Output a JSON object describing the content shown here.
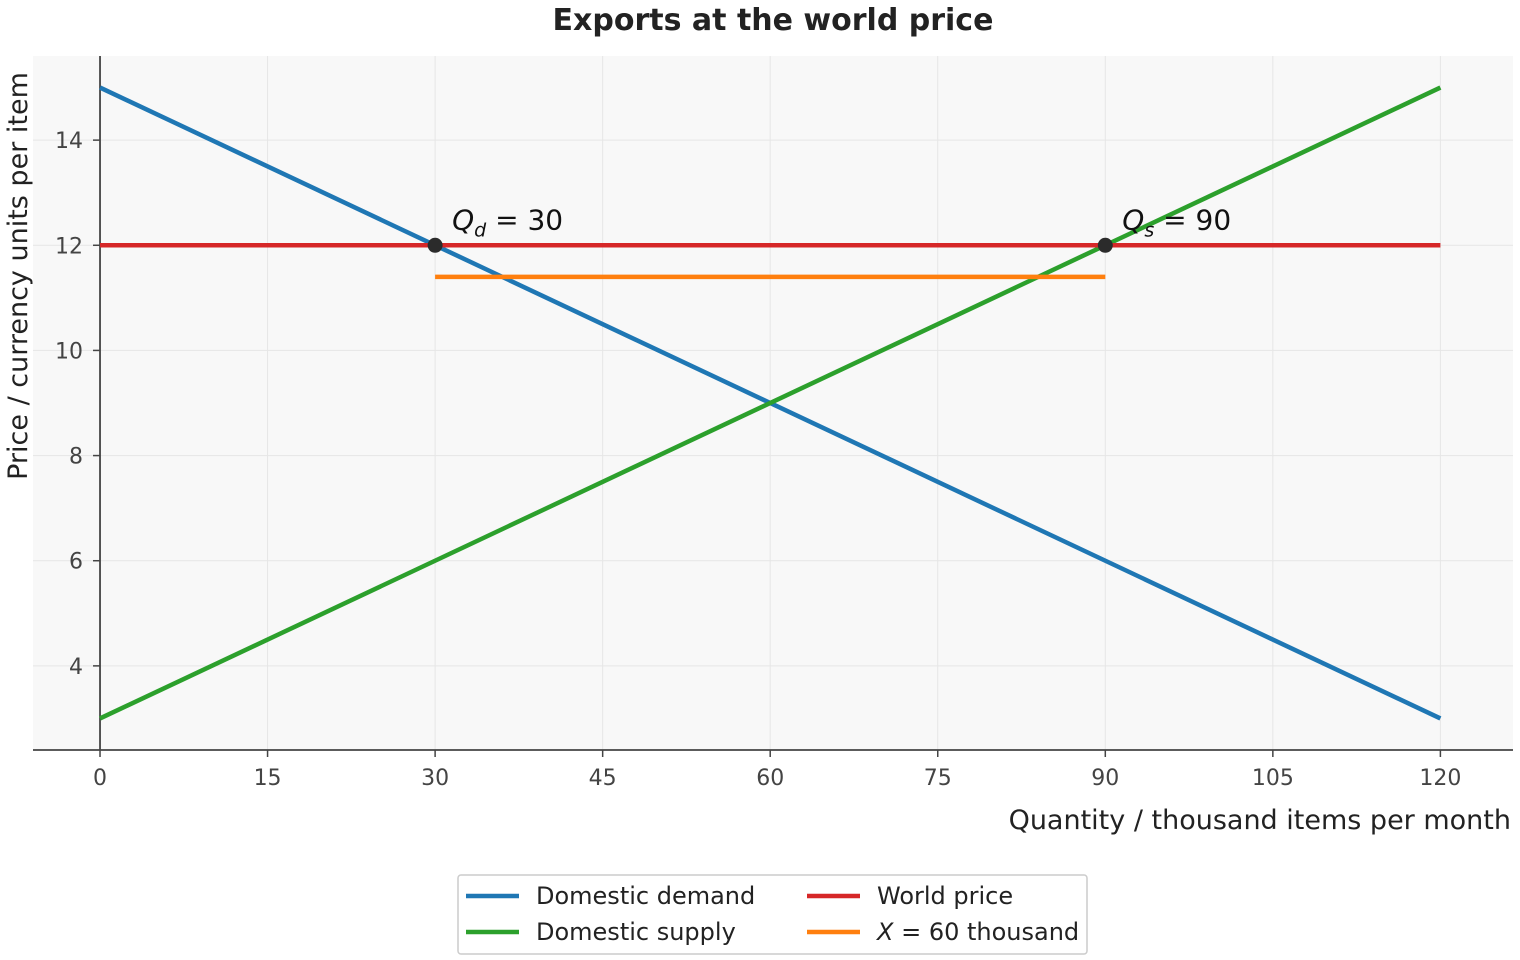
{
  "chart_data": {
    "type": "line",
    "title": "Exports at the world price",
    "xlabel": "Quantity / thousand items per month",
    "ylabel": "Price / currency units per item",
    "xlim": [
      -6,
      126.5
    ],
    "ylim": [
      2.4,
      15.6
    ],
    "xticks": [
      0,
      15,
      30,
      45,
      60,
      75,
      90,
      105,
      120
    ],
    "yticks": [
      4,
      6,
      8,
      10,
      12,
      14
    ],
    "grid": true,
    "legend_position": "bottom-center",
    "series": [
      {
        "name": "Domestic demand",
        "color": "#1f77b4",
        "x": [
          0,
          120
        ],
        "y": [
          15,
          3
        ]
      },
      {
        "name": "Domestic supply",
        "color": "#2ca02c",
        "x": [
          0,
          120
        ],
        "y": [
          3,
          15
        ]
      },
      {
        "name": "World price",
        "color": "#d62728",
        "x": [
          0,
          120
        ],
        "y": [
          12,
          12
        ]
      },
      {
        "name_parts": [
          "X",
          " = 60 thousand"
        ],
        "color": "#ff7f0e",
        "x": [
          30,
          90
        ],
        "y": [
          11.4,
          11.4
        ]
      }
    ],
    "points": [
      {
        "x": 30,
        "y": 12,
        "label_main": "Q",
        "label_sub": "d",
        "label_rest": " = 30"
      },
      {
        "x": 90,
        "y": 12,
        "label_main": "Q",
        "label_sub": "s",
        "label_rest": " = 90"
      }
    ]
  }
}
